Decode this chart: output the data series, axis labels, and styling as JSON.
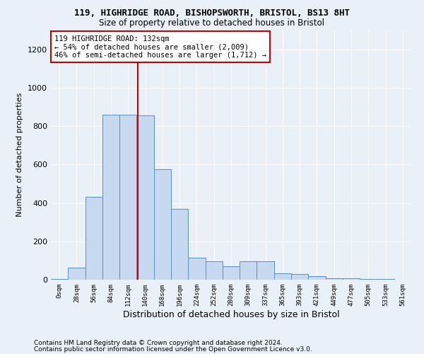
{
  "title1": "119, HIGHRIDGE ROAD, BISHOPSWORTH, BRISTOL, BS13 8HT",
  "title2": "Size of property relative to detached houses in Bristol",
  "xlabel": "Distribution of detached houses by size in Bristol",
  "ylabel": "Number of detached properties",
  "bar_labels": [
    "0sqm",
    "28sqm",
    "56sqm",
    "84sqm",
    "112sqm",
    "140sqm",
    "168sqm",
    "196sqm",
    "224sqm",
    "252sqm",
    "280sqm",
    "309sqm",
    "337sqm",
    "365sqm",
    "393sqm",
    "421sqm",
    "449sqm",
    "477sqm",
    "505sqm",
    "533sqm",
    "561sqm"
  ],
  "bar_values": [
    3,
    62,
    430,
    860,
    860,
    855,
    575,
    370,
    115,
    95,
    70,
    95,
    95,
    35,
    28,
    20,
    8,
    8,
    3,
    3,
    1
  ],
  "bar_color": "#c6d9f0",
  "bar_edge_color": "#5a8fc3",
  "annotation_text": "119 HIGHRIDGE ROAD: 132sqm\n← 54% of detached houses are smaller (2,009)\n46% of semi-detached houses are larger (1,712) →",
  "annotation_box_color": "#ffffff",
  "annotation_box_edge": "#cc0000",
  "vline_color": "#cc0000",
  "vline_index": 4.57,
  "ylim": [
    0,
    1300
  ],
  "yticks": [
    0,
    200,
    400,
    600,
    800,
    1000,
    1200
  ],
  "footnote1": "Contains HM Land Registry data © Crown copyright and database right 2024.",
  "footnote2": "Contains public sector information licensed under the Open Government Licence v3.0.",
  "bg_color": "#eaf0f8",
  "plot_bg_color": "#eaf0f8"
}
